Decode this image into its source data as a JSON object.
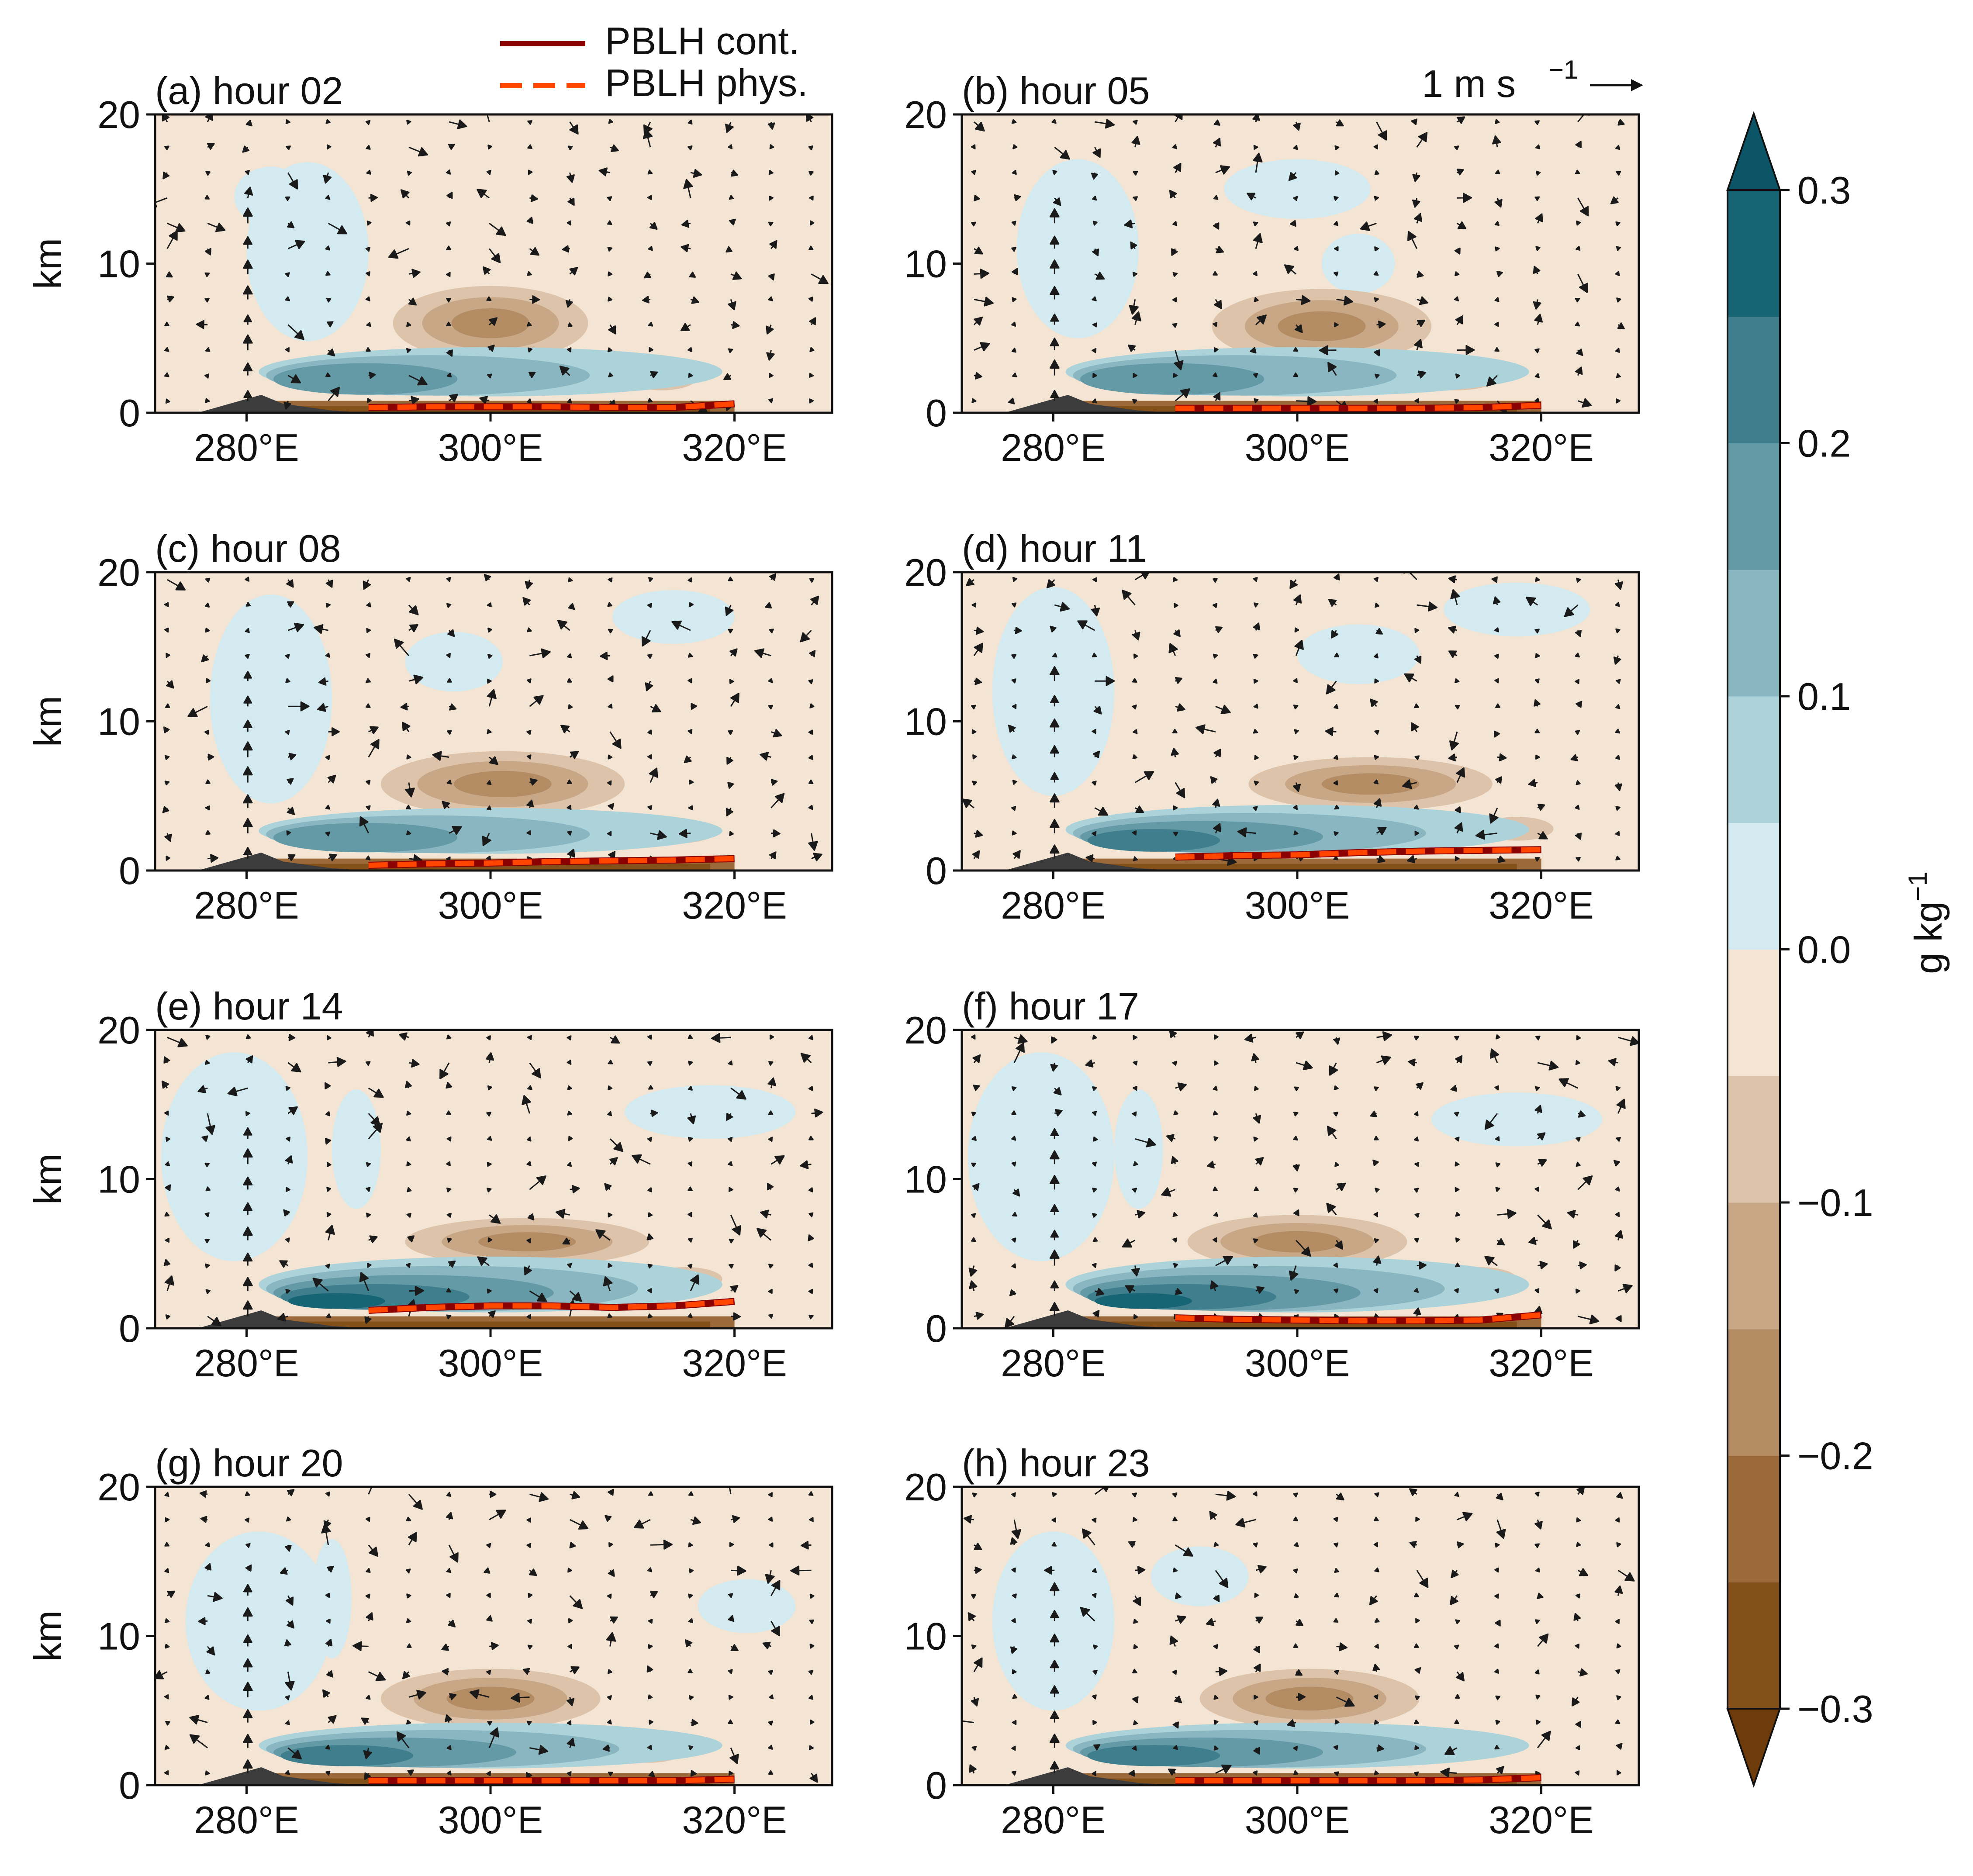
{
  "figure": {
    "legend": {
      "items": [
        {
          "label": "PBLH cont.",
          "color": "#8b0000",
          "style": "solid"
        },
        {
          "label": "PBLH phys.",
          "color": "#ff4500",
          "style": "dashed"
        }
      ]
    },
    "quiver_key": {
      "label": "1 m s",
      "exponent": "−1"
    },
    "colorbar": {
      "label": "g kg",
      "label_exponent": "−1",
      "ticks": [
        "0.3",
        "0.2",
        "0.1",
        "0.0",
        "−0.1",
        "−0.2",
        "−0.3"
      ],
      "tick_values": [
        0.3,
        0.2,
        0.1,
        0.0,
        -0.1,
        -0.2,
        -0.3
      ],
      "levels": [
        -0.3,
        -0.25,
        -0.2,
        -0.15,
        -0.1,
        -0.05,
        0.0,
        0.05,
        0.1,
        0.15,
        0.2,
        0.25,
        0.3
      ],
      "colors": [
        "#84501a",
        "#9c6a3a",
        "#b38c63",
        "#c8a787",
        "#ddc3aa",
        "#f4e4d4",
        "#d3ebf0",
        "#acd2da",
        "#8ab6c1",
        "#6499a6",
        "#3e7e8d",
        "#176475"
      ],
      "extend_low_color": "#6e3c0a",
      "extend_high_color": "#0b5566",
      "extend": "both"
    }
  },
  "chart_data": [
    {
      "type": "contourf+quiver",
      "panel": "a",
      "title": "(a) hour 02",
      "ylabel": "km",
      "xticks": [
        "280°E",
        "300°E",
        "320°E"
      ],
      "xtick_values": [
        280,
        300,
        320
      ],
      "xlim": [
        272.5,
        328
      ],
      "yticks": [
        "0",
        "10",
        "20"
      ],
      "ytick_values": [
        0,
        10,
        20
      ],
      "ylim": [
        0,
        20
      ],
      "pblh": {
        "x": [
          290,
          295,
          300,
          305,
          310,
          315,
          320
        ],
        "cont": [
          0.35,
          0.4,
          0.4,
          0.4,
          0.35,
          0.35,
          0.6
        ],
        "phys": [
          0.35,
          0.4,
          0.4,
          0.4,
          0.35,
          0.35,
          0.6
        ]
      }
    },
    {
      "type": "contourf+quiver",
      "panel": "b",
      "title": "(b) hour 05",
      "ylabel": "",
      "xticks": [
        "280°E",
        "300°E",
        "320°E"
      ],
      "xtick_values": [
        280,
        300,
        320
      ],
      "xlim": [
        272.5,
        328
      ],
      "yticks": [
        "0",
        "10",
        "20"
      ],
      "ytick_values": [
        0,
        10,
        20
      ],
      "ylim": [
        0,
        20
      ],
      "pblh": {
        "x": [
          290,
          295,
          300,
          305,
          310,
          315,
          320
        ],
        "cont": [
          0.3,
          0.3,
          0.3,
          0.3,
          0.3,
          0.35,
          0.5
        ],
        "phys": [
          0.3,
          0.3,
          0.3,
          0.3,
          0.3,
          0.35,
          0.5
        ]
      }
    },
    {
      "type": "contourf+quiver",
      "panel": "c",
      "title": "(c) hour 08",
      "ylabel": "km",
      "xticks": [
        "280°E",
        "300°E",
        "320°E"
      ],
      "xtick_values": [
        280,
        300,
        320
      ],
      "xlim": [
        272.5,
        328
      ],
      "yticks": [
        "0",
        "10",
        "20"
      ],
      "ytick_values": [
        0,
        10,
        20
      ],
      "ylim": [
        0,
        20
      ],
      "pblh": {
        "x": [
          290,
          295,
          300,
          305,
          310,
          315,
          320
        ],
        "cont": [
          0.35,
          0.45,
          0.5,
          0.6,
          0.65,
          0.7,
          0.8
        ],
        "phys": [
          0.35,
          0.45,
          0.5,
          0.6,
          0.65,
          0.7,
          0.8
        ]
      }
    },
    {
      "type": "contourf+quiver",
      "panel": "d",
      "title": "(d) hour 11",
      "ylabel": "",
      "xticks": [
        "280°E",
        "300°E",
        "320°E"
      ],
      "xtick_values": [
        280,
        300,
        320
      ],
      "xlim": [
        272.5,
        328
      ],
      "yticks": [
        "0",
        "10",
        "20"
      ],
      "ytick_values": [
        0,
        10,
        20
      ],
      "ylim": [
        0,
        20
      ],
      "pblh": {
        "x": [
          290,
          295,
          300,
          305,
          310,
          315,
          320
        ],
        "cont": [
          0.9,
          1.0,
          1.05,
          1.2,
          1.3,
          1.35,
          1.4
        ],
        "phys": [
          0.9,
          1.0,
          1.05,
          1.2,
          1.3,
          1.35,
          1.4
        ]
      }
    },
    {
      "type": "contourf+quiver",
      "panel": "e",
      "title": "(e) hour 14",
      "ylabel": "km",
      "xticks": [
        "280°E",
        "300°E",
        "320°E"
      ],
      "xtick_values": [
        280,
        300,
        320
      ],
      "xlim": [
        272.5,
        328
      ],
      "yticks": [
        "0",
        "10",
        "20"
      ],
      "ytick_values": [
        0,
        10,
        20
      ],
      "ylim": [
        0,
        20
      ],
      "pblh": {
        "x": [
          290,
          295,
          300,
          305,
          310,
          315,
          320
        ],
        "cont": [
          1.2,
          1.4,
          1.5,
          1.5,
          1.4,
          1.5,
          1.8
        ],
        "phys": [
          1.2,
          1.4,
          1.5,
          1.5,
          1.4,
          1.5,
          1.8
        ]
      }
    },
    {
      "type": "contourf+quiver",
      "panel": "f",
      "title": "(f) hour 17",
      "ylabel": "",
      "xticks": [
        "280°E",
        "300°E",
        "320°E"
      ],
      "xtick_values": [
        280,
        300,
        320
      ],
      "xlim": [
        272.5,
        328
      ],
      "yticks": [
        "0",
        "10",
        "20"
      ],
      "ytick_values": [
        0,
        10,
        20
      ],
      "ylim": [
        0,
        20
      ],
      "pblh": {
        "x": [
          290,
          295,
          300,
          305,
          310,
          315,
          320
        ],
        "cont": [
          0.7,
          0.6,
          0.55,
          0.5,
          0.5,
          0.55,
          0.9
        ],
        "phys": [
          0.7,
          0.6,
          0.55,
          0.5,
          0.5,
          0.55,
          0.9
        ]
      }
    },
    {
      "type": "contourf+quiver",
      "panel": "g",
      "title": "(g) hour 20",
      "ylabel": "km",
      "xticks": [
        "280°E",
        "300°E",
        "320°E"
      ],
      "xtick_values": [
        280,
        300,
        320
      ],
      "xlim": [
        272.5,
        328
      ],
      "yticks": [
        "0",
        "10",
        "20"
      ],
      "ytick_values": [
        0,
        10,
        20
      ],
      "ylim": [
        0,
        20
      ],
      "pblh": {
        "x": [
          290,
          295,
          300,
          305,
          310,
          315,
          320
        ],
        "cont": [
          0.3,
          0.3,
          0.3,
          0.3,
          0.3,
          0.3,
          0.4
        ],
        "phys": [
          0.3,
          0.3,
          0.3,
          0.3,
          0.3,
          0.3,
          0.4
        ]
      }
    },
    {
      "type": "contourf+quiver",
      "panel": "h",
      "title": "(h) hour 23",
      "ylabel": "",
      "xticks": [
        "280°E",
        "300°E",
        "320°E"
      ],
      "xtick_values": [
        280,
        300,
        320
      ],
      "xlim": [
        272.5,
        328
      ],
      "yticks": [
        "0",
        "10",
        "20"
      ],
      "ytick_values": [
        0,
        10,
        20
      ],
      "ylim": [
        0,
        20
      ],
      "pblh": {
        "x": [
          290,
          295,
          300,
          305,
          310,
          315,
          320
        ],
        "cont": [
          0.3,
          0.3,
          0.3,
          0.3,
          0.3,
          0.35,
          0.5
        ],
        "phys": [
          0.3,
          0.3,
          0.3,
          0.3,
          0.3,
          0.35,
          0.5
        ]
      }
    }
  ]
}
